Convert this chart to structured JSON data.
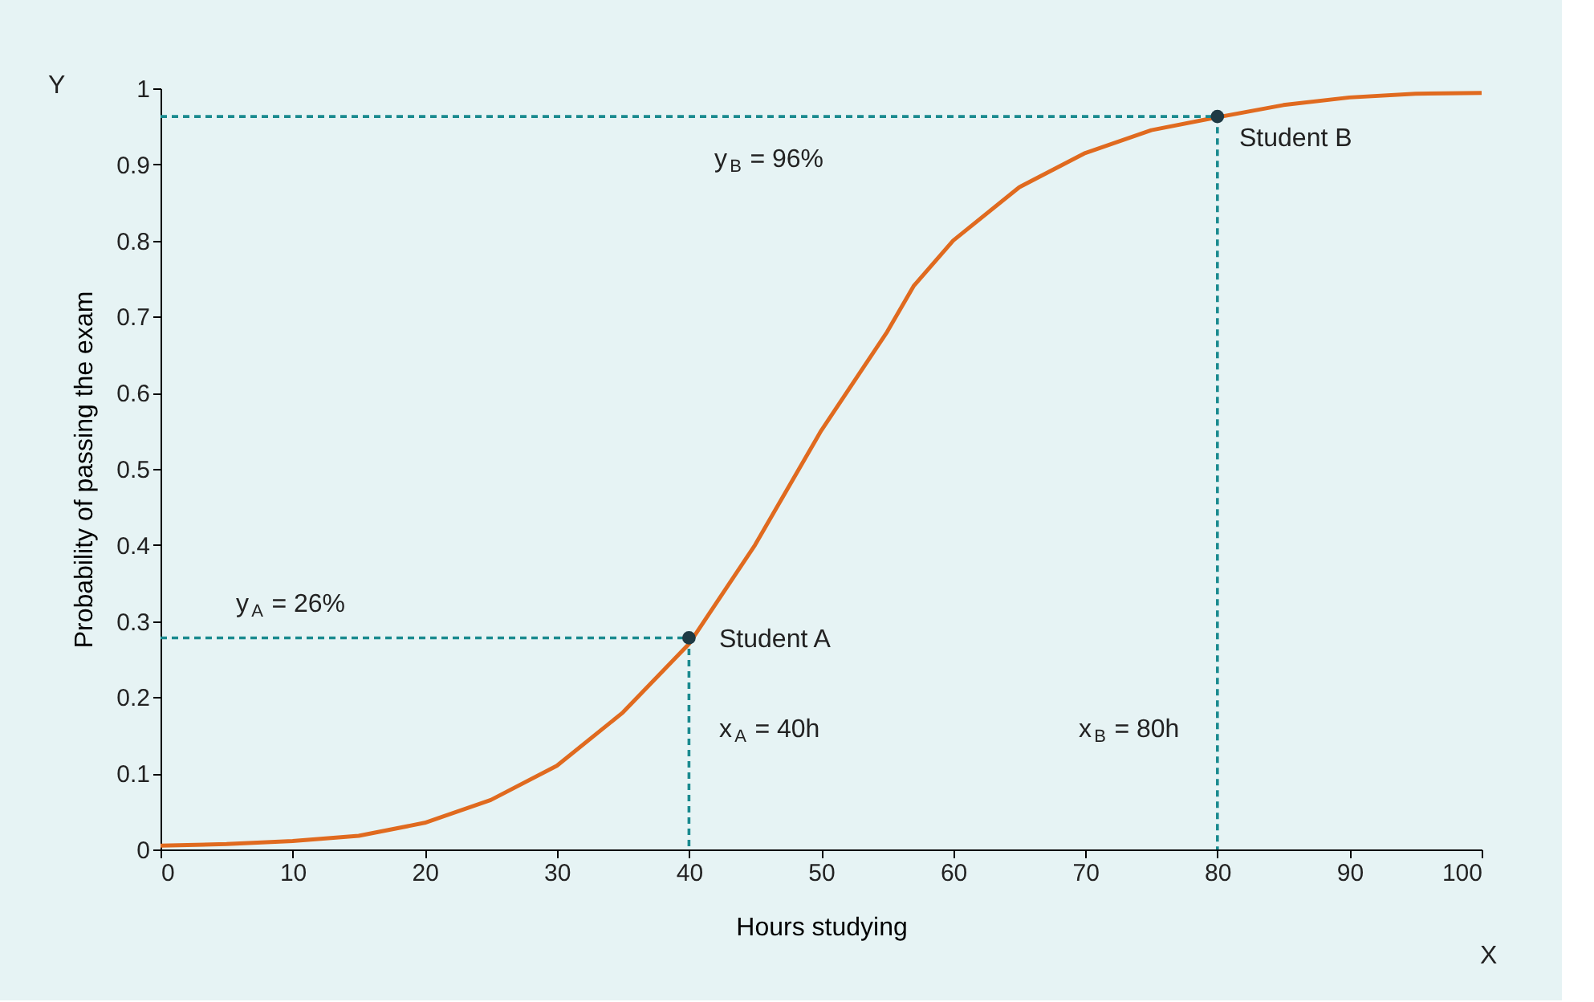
{
  "chart_data": {
    "type": "line",
    "xlabel": "Hours studying",
    "ylabel": "Probability of passing the exam",
    "xlim": [
      0,
      100
    ],
    "xticks": [
      0,
      10,
      20,
      30,
      40,
      50,
      60,
      70,
      80,
      90,
      100
    ],
    "ylim": [
      0,
      1
    ],
    "yticks": [
      0,
      0.1,
      0.2,
      0.3,
      0.4,
      0.5,
      0.6,
      0.7,
      0.8,
      0.9,
      1
    ],
    "grid": false,
    "series": [
      {
        "line_style": "solid",
        "color": "#e06a1f",
        "x": [
          0,
          5,
          10,
          15,
          20,
          25,
          30,
          35,
          40,
          45,
          50,
          55,
          57,
          60,
          65,
          70,
          75,
          80,
          85,
          90,
          95,
          100
        ],
        "values": [
          0.005,
          0.007,
          0.011,
          0.018,
          0.035,
          0.065,
          0.11,
          0.18,
          0.27,
          0.4,
          0.55,
          0.68,
          0.74,
          0.8,
          0.87,
          0.915,
          0.945,
          0.962,
          0.978,
          0.988,
          0.993,
          0.994
        ]
      },
      {
        "type": "line",
        "color": "#1a8a8f",
        "line_style": "dashed",
        "x": [
          0,
          40,
          40
        ],
        "values": [
          0.278,
          0.278,
          0
        ]
      },
      {
        "type": "line",
        "color": "#1a8a8f",
        "line_style": "dashed",
        "x": [
          0,
          80,
          80
        ],
        "values": [
          0.963,
          0.963,
          0
        ]
      },
      {
        "type": "scatter",
        "color": "#1f3a44",
        "marker": "circle",
        "x": [
          40,
          80
        ],
        "values": [
          0.278,
          0.963
        ]
      }
    ],
    "annotations": [
      "Y",
      "X",
      "y$_{A}$ = 26%",
      "x$_{A}$ = 40h",
      "Student A",
      "y$_{B}$ = 96%",
      "x$_{B}$ = 80h",
      "Student B"
    ]
  }
}
